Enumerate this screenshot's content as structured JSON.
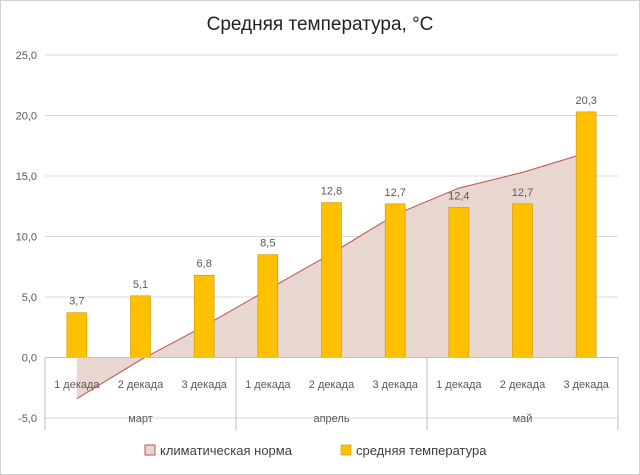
{
  "chart_data": {
    "type": "bar",
    "title": "Средняя температура, °C",
    "ylim": [
      -5,
      25
    ],
    "yticks": [
      "-5,0",
      "0,0",
      "5,0",
      "10,0",
      "15,0",
      "20,0",
      "25,0"
    ],
    "ytick_values": [
      -5,
      0,
      5,
      10,
      15,
      20,
      25
    ],
    "grid": true,
    "legend": "bottom",
    "categories": [
      "1 декада",
      "2 декада",
      "3 декада",
      "1 декада",
      "2 декада",
      "3 декада",
      "1 декада",
      "2 декада",
      "3 декада"
    ],
    "groups": [
      {
        "label": "март",
        "span": 3
      },
      {
        "label": "апрель",
        "span": 3
      },
      {
        "label": "май",
        "span": 3
      }
    ],
    "series": [
      {
        "name": "климатическая норма",
        "type": "area",
        "color": "#c0504d",
        "fill": "#e8d6d0",
        "values": [
          -3.4,
          -0.2,
          2.6,
          5.6,
          8.6,
          11.8,
          14.0,
          15.3,
          16.9
        ]
      },
      {
        "name": "средняя температура",
        "type": "bar",
        "color": "#ffc000",
        "values": [
          3.7,
          5.1,
          6.8,
          8.5,
          12.8,
          12.7,
          12.4,
          12.7,
          20.3
        ],
        "labels": [
          "3,7",
          "5,1",
          "6,8",
          "8,5",
          "12,8",
          "12,7",
          "12,4",
          "12,7",
          "20,3"
        ]
      }
    ]
  }
}
